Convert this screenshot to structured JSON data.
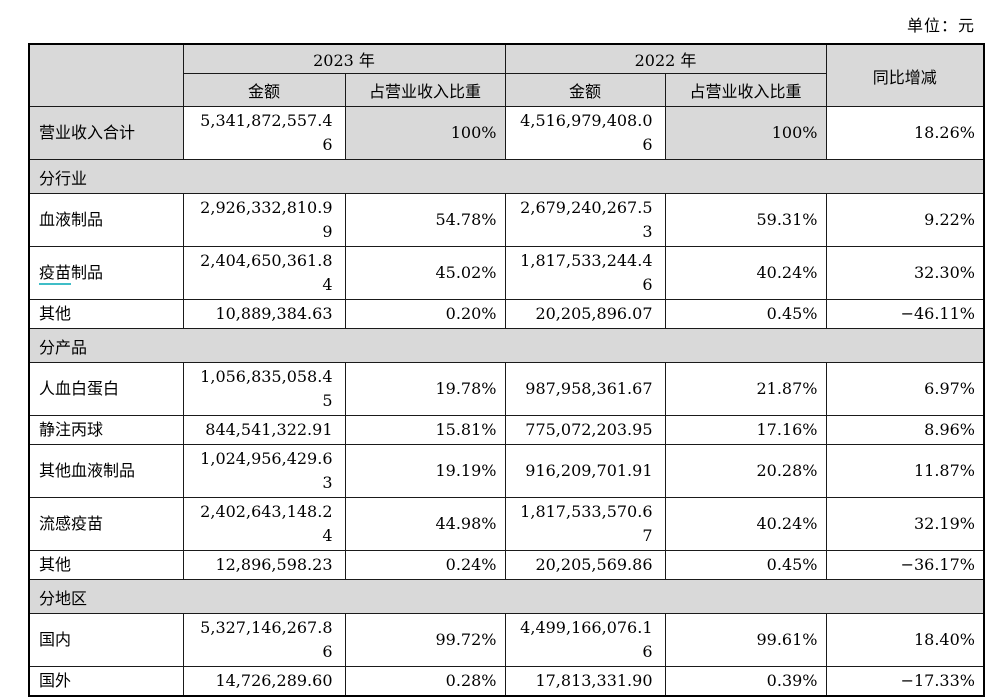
{
  "unit_label": "单位：元",
  "colors": {
    "header_bg": "#d9d9d9",
    "border": "#000000",
    "annotation_underline": "#3fbdc7"
  },
  "table": {
    "year_headers": [
      "2023 年",
      "2022 年"
    ],
    "sub_headers": [
      "金额",
      "占营业收入比重",
      "金额",
      "占营业收入比重"
    ],
    "yoy_header": "同比增减",
    "rows": [
      {
        "type": "data",
        "label": "营业收入合计",
        "highlight": true,
        "values": [
          "5,341,872,557.46",
          "100%",
          "4,516,979,408.06",
          "100%",
          "18.26%"
        ]
      },
      {
        "type": "section",
        "label": "分行业"
      },
      {
        "type": "data",
        "label": "血液制品",
        "values": [
          "2,926,332,810.99",
          "54.78%",
          "2,679,240,267.53",
          "59.31%",
          "9.22%"
        ]
      },
      {
        "type": "data",
        "label": "疫苗制品",
        "underline_len": 2,
        "values": [
          "2,404,650,361.84",
          "45.02%",
          "1,817,533,244.46",
          "40.24%",
          "32.30%"
        ]
      },
      {
        "type": "data",
        "label": "其他",
        "values": [
          "10,889,384.63",
          "0.20%",
          "20,205,896.07",
          "0.45%",
          "−46.11%"
        ]
      },
      {
        "type": "section",
        "label": "分产品"
      },
      {
        "type": "data",
        "label": "人血白蛋白",
        "values": [
          "1,056,835,058.45",
          "19.78%",
          "987,958,361.67",
          "21.87%",
          "6.97%"
        ]
      },
      {
        "type": "data",
        "label": "静注丙球",
        "values": [
          "844,541,322.91",
          "15.81%",
          "775,072,203.95",
          "17.16%",
          "8.96%"
        ]
      },
      {
        "type": "data",
        "label": "其他血液制品",
        "values": [
          "1,024,956,429.63",
          "19.19%",
          "916,209,701.91",
          "20.28%",
          "11.87%"
        ]
      },
      {
        "type": "data",
        "label": "流感疫苗",
        "values": [
          "2,402,643,148.24",
          "44.98%",
          "1,817,533,570.67",
          "40.24%",
          "32.19%"
        ]
      },
      {
        "type": "data",
        "label": "其他",
        "values": [
          "12,896,598.23",
          "0.24%",
          "20,205,569.86",
          "0.45%",
          "−36.17%"
        ]
      },
      {
        "type": "section",
        "label": "分地区"
      },
      {
        "type": "data",
        "label": "国内",
        "values": [
          "5,327,146,267.86",
          "99.72%",
          "4,499,166,076.16",
          "99.61%",
          "18.40%"
        ]
      },
      {
        "type": "data",
        "label": "国外",
        "values": [
          "14,726,289.60",
          "0.28%",
          "17,813,331.90",
          "0.39%",
          "−17.33%"
        ]
      }
    ]
  }
}
